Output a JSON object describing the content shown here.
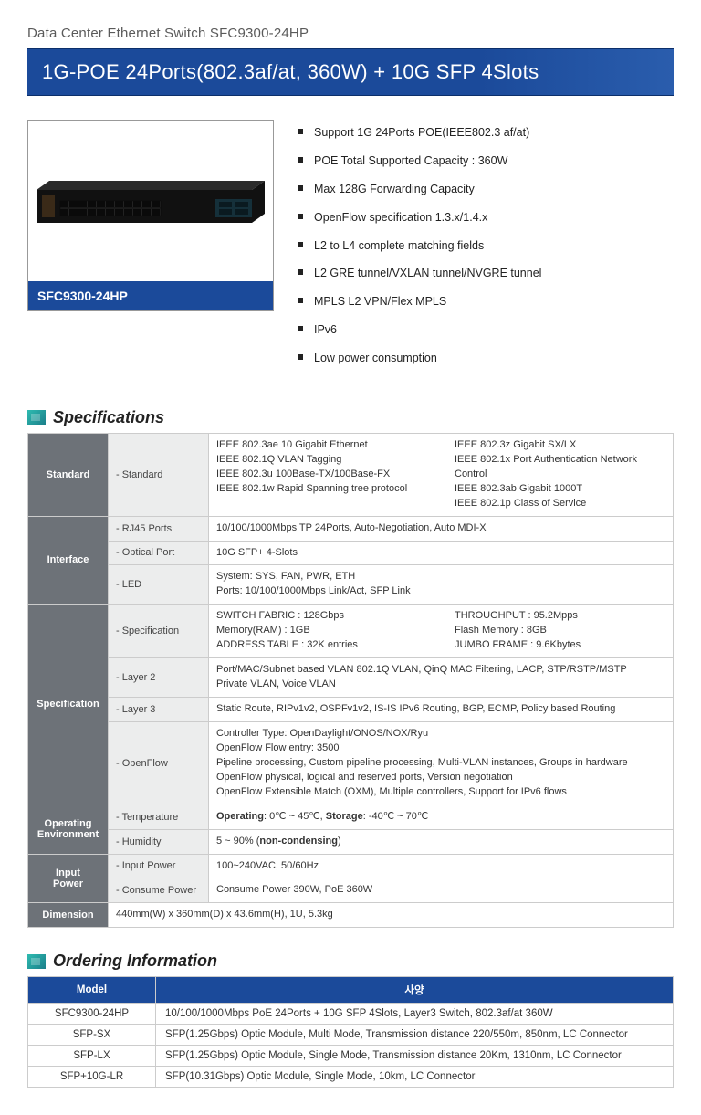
{
  "colors": {
    "brand_blue": "#1b4a9a",
    "accent_teal_a": "#2ebbb0",
    "accent_teal_b": "#1b7f8a",
    "cat_gray": "#6d7278",
    "sub_gray": "#eceded",
    "border_gray": "#cccccc",
    "text": "#333333"
  },
  "pretitle": "Data Center Ethernet Switch  SFC9300-24HP",
  "title": "1G-POE 24Ports(802.3af/at, 360W)  + 10G SFP 4Slots",
  "model_label": "SFC9300-24HP",
  "features": [
    "Support 1G 24Ports POE(IEEE802.3 af/at)",
    "POE Total Supported Capacity : 360W",
    "Max 128G Forwarding Capacity",
    "OpenFlow specification 1.3.x/1.4.x",
    "L2 to L4 complete matching fields",
    "L2 GRE tunnel/VXLAN tunnel/NVGRE tunnel",
    "MPLS L2 VPN/Flex MPLS",
    "IPv6",
    "Low power consumption"
  ],
  "sections": {
    "specifications": "Specifications",
    "ordering": "Ordering Information"
  },
  "spec_rows": [
    {
      "cat": "Standard",
      "cat_rowspan": 1,
      "sub": "- Standard",
      "val_cols": [
        [
          "IEEE 802.3ae 10 Gigabit Ethernet",
          "IEEE 802.1Q VLAN Tagging",
          "IEEE 802.3u 100Base-TX/100Base-FX",
          "IEEE 802.1w Rapid Spanning tree protocol"
        ],
        [
          "IEEE 802.3z Gigabit SX/LX",
          "IEEE 802.1x Port Authentication Network Control",
          "IEEE 802.3ab Gigabit 1000T",
          "IEEE 802.1p Class of Service"
        ]
      ]
    },
    {
      "cat": "Interface",
      "cat_rowspan": 3,
      "sub": "- RJ45 Ports",
      "val": "10/100/1000Mbps TP 24Ports,  Auto-Negotiation, Auto MDI-X"
    },
    {
      "sub": "- Optical Port",
      "val": "10G SFP+ 4-Slots"
    },
    {
      "sub": "- LED",
      "val": "System: SYS, FAN, PWR, ETH\nPorts: 10/100/1000Mbps Link/Act, SFP Link"
    },
    {
      "cat": "Specification",
      "cat_rowspan": 4,
      "sub": "- Specification",
      "val_cols": [
        [
          "SWITCH FABRIC : 128Gbps",
          "Memory(RAM) : 1GB",
          "ADDRESS TABLE : 32K entries"
        ],
        [
          "THROUGHPUT : 95.2Mpps",
          "Flash Memory : 8GB",
          "JUMBO FRAME : 9.6Kbytes"
        ]
      ]
    },
    {
      "sub": "- Layer 2",
      "val": "Port/MAC/Subnet based VLAN 802.1Q VLAN, QinQ MAC Filtering, LACP, STP/RSTP/MSTP\nPrivate VLAN, Voice VLAN"
    },
    {
      "sub": "- Layer 3",
      "val": "Static Route, RIPv1v2, OSPFv1v2, IS-IS IPv6 Routing, BGP, ECMP, Policy based Routing"
    },
    {
      "sub": "- OpenFlow",
      "val": "Controller Type: OpenDaylight/ONOS/NOX/Ryu\nOpenFlow Flow entry: 3500\nPipeline processing, Custom pipeline processing, Multi-VLAN instances, Groups in hardware\nOpenFlow physical, logical and reserved ports, Version negotiation\nOpenFlow Extensible Match (OXM), Multiple controllers, Support for IPv6 flows"
    },
    {
      "cat": "Operating Environment",
      "cat_rowspan": 2,
      "sub": "- Temperature",
      "val_html": "<b>Operating</b>: 0℃ ~ 45℃, <b>Storage</b>: -40℃ ~ 70℃"
    },
    {
      "sub": "- Humidity",
      "val_html": "5 ~ 90% (<b>non-condensing</b>)"
    },
    {
      "cat": "Input Power",
      "cat_rowspan": 2,
      "sub": "- Input Power",
      "val": "100~240VAC, 50/60Hz"
    },
    {
      "sub": "- Consume Power",
      "val": "Consume Power  390W, PoE 360W"
    },
    {
      "cat": "Dimension",
      "cat_rowspan": 1,
      "sub": "",
      "val": "440mm(W) x 360mm(D) x 43.6mm(H), 1U, 5.3kg"
    }
  ],
  "order_headers": [
    "Model",
    "사양"
  ],
  "order_rows": [
    [
      "SFC9300-24HP",
      "10/100/1000Mbps PoE 24Ports + 10G SFP 4Slots, Layer3 Switch, 802.3af/at 360W"
    ],
    [
      "SFP-SX",
      "SFP(1.25Gbps) Optic Module, Multi Mode, Transmission distance 220/550m, 850nm, LC Connector"
    ],
    [
      "SFP-LX",
      "SFP(1.25Gbps) Optic Module, Single Mode, Transmission distance 20Km, 1310nm, LC Connector"
    ],
    [
      "SFP+10G-LR",
      "SFP(10.31Gbps) Optic Module, Single Mode, 10km, LC Connector"
    ]
  ]
}
